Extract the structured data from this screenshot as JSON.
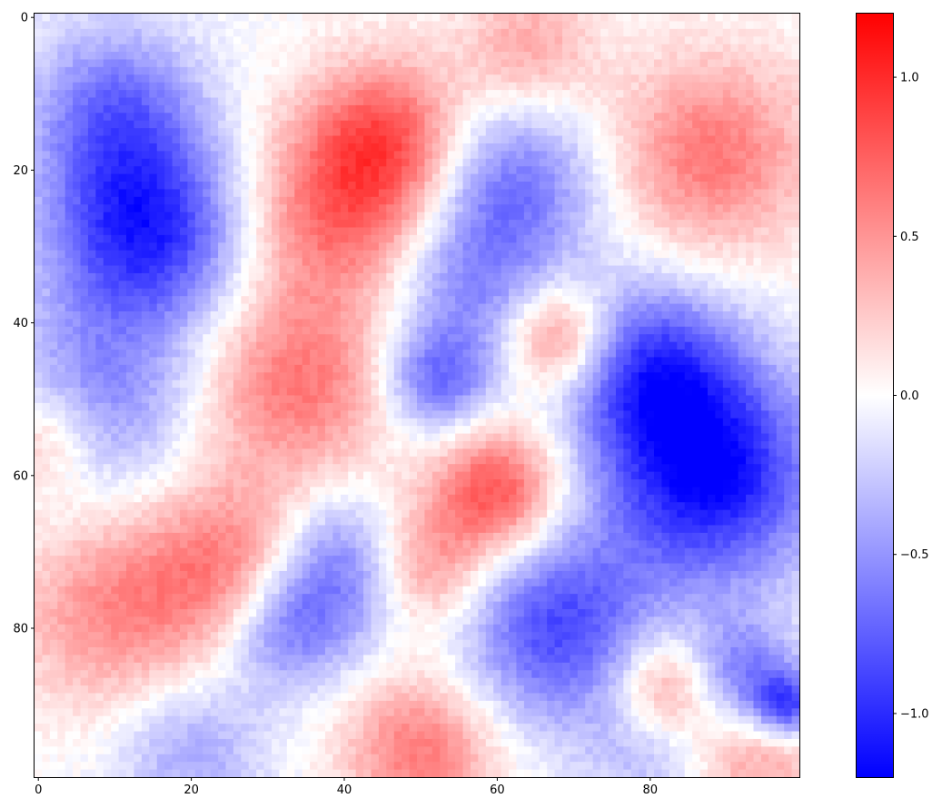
{
  "chart_data": {
    "type": "heatmap",
    "title": "",
    "xlabel": "",
    "ylabel": "",
    "shape": [
      100,
      100
    ],
    "xlim": [
      -0.5,
      99.5
    ],
    "ylim": [
      99.5,
      -0.5
    ],
    "x_ticks": [
      0,
      20,
      40,
      60,
      80
    ],
    "x_tick_labels": [
      "0",
      "20",
      "40",
      "60",
      "80"
    ],
    "y_ticks": [
      0,
      20,
      40,
      60,
      80
    ],
    "y_tick_labels": [
      "0",
      "20",
      "40",
      "60",
      "80"
    ],
    "colormap": "bwr",
    "colormap_stops": [
      "#0000ff",
      "#ffffff",
      "#ff0000"
    ],
    "vmin": -1.2,
    "vmax": 1.2,
    "colorbar": {
      "ticks": [
        1.0,
        0.5,
        0.0,
        -0.5,
        -1.0
      ],
      "tick_labels": [
        "1.0",
        "0.5",
        "0.0",
        "−0.5",
        "−1.0"
      ]
    },
    "grid": false,
    "regions": [
      {
        "col": 14,
        "row": 28,
        "value": -1.0,
        "spread": 9
      },
      {
        "col": 10,
        "row": 12,
        "value": -0.6,
        "spread": 8
      },
      {
        "col": 8,
        "row": 50,
        "value": -0.5,
        "spread": 9
      },
      {
        "col": 1,
        "row": 55,
        "value": 0.4,
        "spread": 5
      },
      {
        "col": 40,
        "row": 25,
        "value": 0.7,
        "spread": 9
      },
      {
        "col": 46,
        "row": 15,
        "value": 0.6,
        "spread": 7
      },
      {
        "col": 34,
        "row": 48,
        "value": 0.6,
        "spread": 9
      },
      {
        "col": 26,
        "row": 72,
        "value": 0.6,
        "spread": 8
      },
      {
        "col": 10,
        "row": 78,
        "value": 0.5,
        "spread": 9
      },
      {
        "col": 64,
        "row": 4,
        "value": 0.4,
        "spread": 6
      },
      {
        "col": 88,
        "row": 18,
        "value": 0.6,
        "spread": 9
      },
      {
        "col": 62,
        "row": 22,
        "value": -0.6,
        "spread": 8
      },
      {
        "col": 56,
        "row": 36,
        "value": -0.5,
        "spread": 8
      },
      {
        "col": 52,
        "row": 48,
        "value": -0.6,
        "spread": 5
      },
      {
        "col": 68,
        "row": 42,
        "value": 0.7,
        "spread": 5
      },
      {
        "col": 60,
        "row": 62,
        "value": 0.8,
        "spread": 6
      },
      {
        "col": 50,
        "row": 72,
        "value": 0.6,
        "spread": 6
      },
      {
        "col": 88,
        "row": 60,
        "value": -1.1,
        "spread": 10
      },
      {
        "col": 80,
        "row": 46,
        "value": -0.8,
        "spread": 8
      },
      {
        "col": 68,
        "row": 80,
        "value": -0.8,
        "spread": 9
      },
      {
        "col": 40,
        "row": 72,
        "value": -0.7,
        "spread": 7
      },
      {
        "col": 32,
        "row": 80,
        "value": -0.6,
        "spread": 6
      },
      {
        "col": 82,
        "row": 88,
        "value": 0.6,
        "spread": 5
      },
      {
        "col": 92,
        "row": 86,
        "value": -0.6,
        "spread": 5
      },
      {
        "col": 98,
        "row": 90,
        "value": -0.8,
        "spread": 3
      },
      {
        "col": 50,
        "row": 96,
        "value": 0.6,
        "spread": 7
      },
      {
        "col": 20,
        "row": 96,
        "value": -0.4,
        "spread": 7
      },
      {
        "col": 94,
        "row": 98,
        "value": 0.4,
        "spread": 6
      },
      {
        "col": 80,
        "row": 96,
        "value": -0.3,
        "spread": 6
      }
    ]
  }
}
